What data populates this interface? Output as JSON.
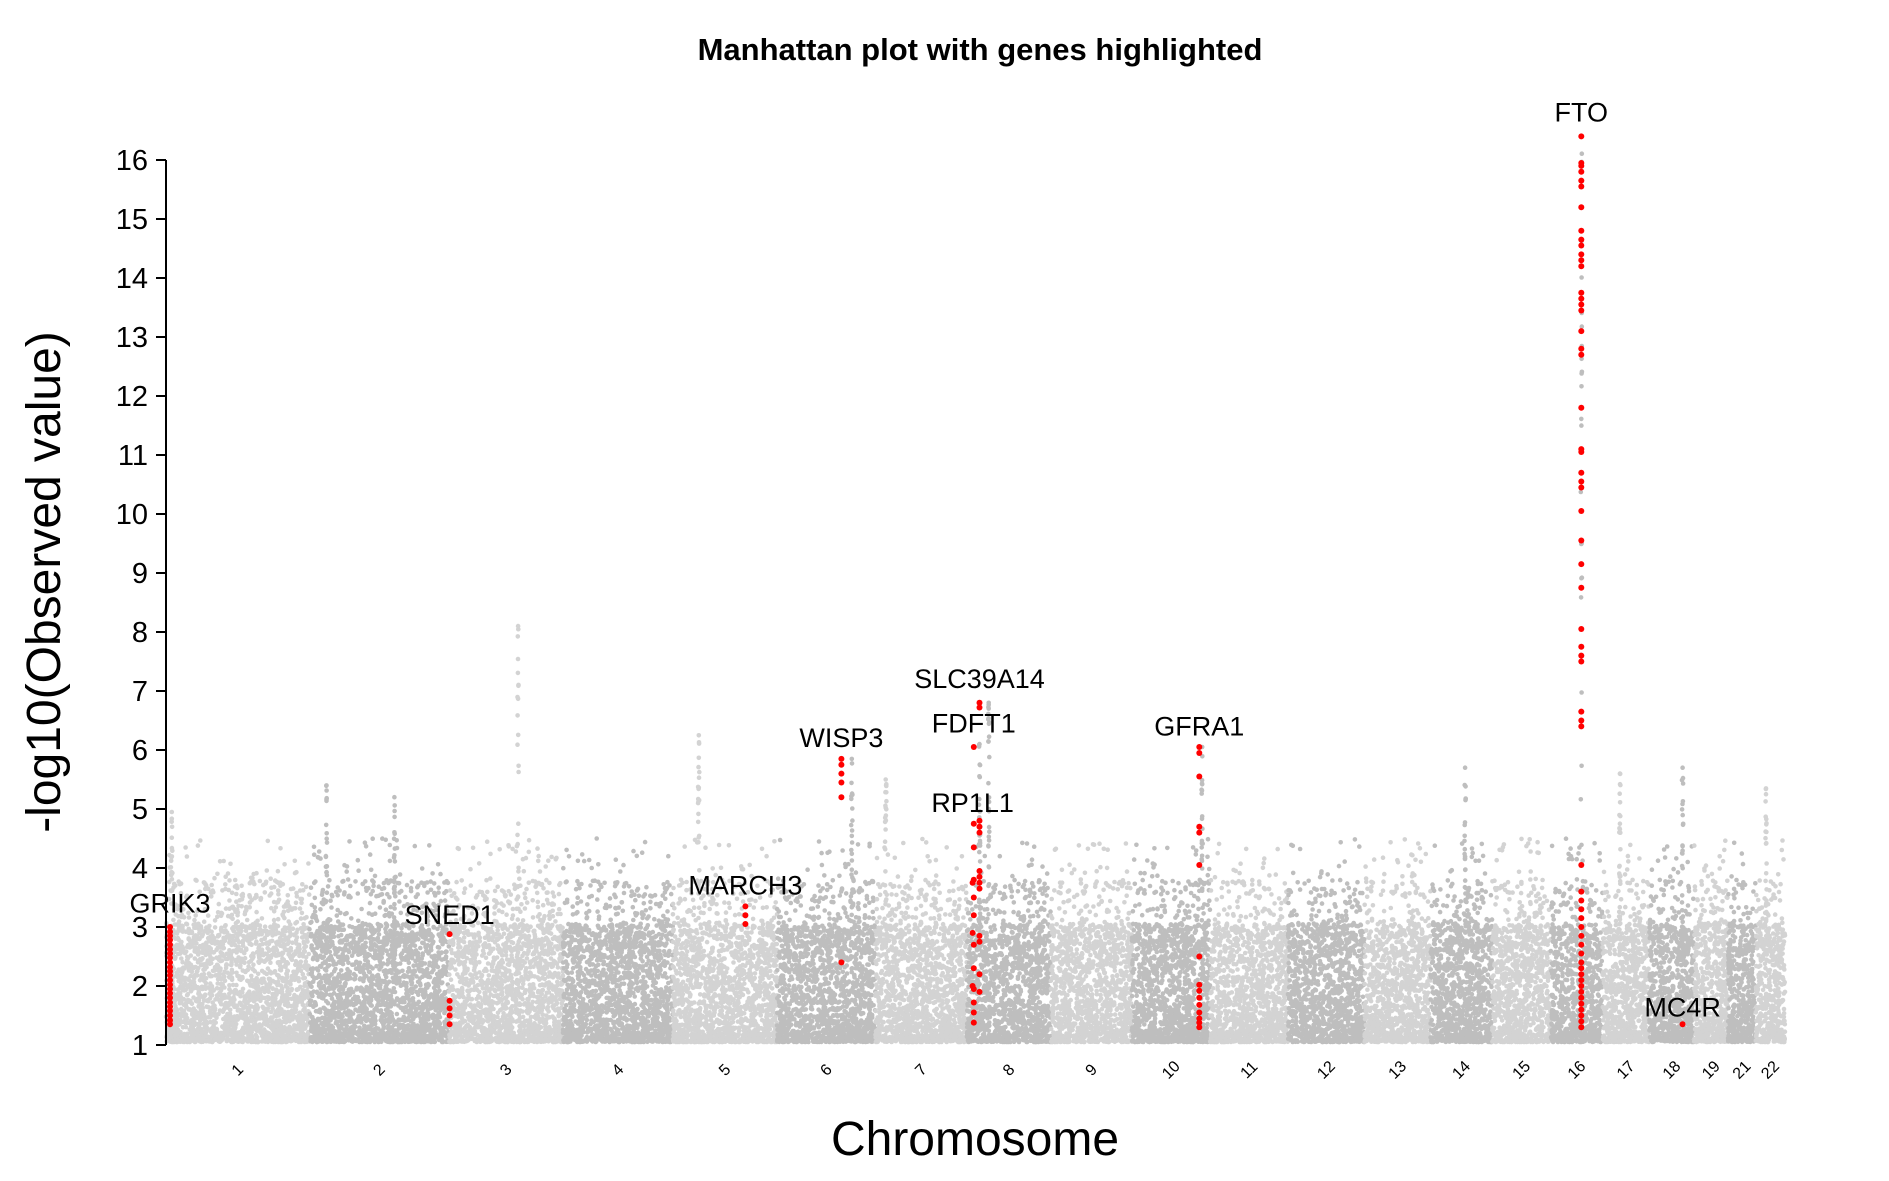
{
  "chart_data": {
    "type": "scatter",
    "title": "Manhattan plot with genes highlighted",
    "xlabel": "Chromosome",
    "ylabel": "-log10(Observed value)",
    "ylim": [
      1,
      16.5
    ],
    "y_ticks": [
      1,
      2,
      3,
      4,
      5,
      6,
      7,
      8,
      9,
      10,
      11,
      12,
      13,
      14,
      15,
      16
    ],
    "grid": false,
    "legend": "none",
    "colors": {
      "chromosome_odd": "#d3d3d3",
      "chromosome_even": "#bebebe",
      "highlight": "#ff0000",
      "axis": "#000000"
    },
    "chromosomes": [
      {
        "label": "1",
        "start": 0,
        "length": 249
      },
      {
        "label": "2",
        "start": 249,
        "length": 243
      },
      {
        "label": "3",
        "start": 492,
        "length": 198
      },
      {
        "label": "4",
        "start": 690,
        "length": 191
      },
      {
        "label": "5",
        "start": 881,
        "length": 181
      },
      {
        "label": "6",
        "start": 1062,
        "length": 171
      },
      {
        "label": "7",
        "start": 1233,
        "length": 159
      },
      {
        "label": "8",
        "start": 1392,
        "length": 146
      },
      {
        "label": "9",
        "start": 1538,
        "length": 141
      },
      {
        "label": "10",
        "start": 1679,
        "length": 136
      },
      {
        "label": "11",
        "start": 1815,
        "length": 135
      },
      {
        "label": "12",
        "start": 1950,
        "length": 133
      },
      {
        "label": "13",
        "start": 2083,
        "length": 115
      },
      {
        "label": "14",
        "start": 2198,
        "length": 107
      },
      {
        "label": "15",
        "start": 2305,
        "length": 102
      },
      {
        "label": "16",
        "start": 2407,
        "length": 90
      },
      {
        "label": "17",
        "start": 2497,
        "length": 81
      },
      {
        "label": "18",
        "start": 2578,
        "length": 78
      },
      {
        "label": "19",
        "start": 2656,
        "length": 59
      },
      {
        "label": "21",
        "start": 2715,
        "length": 48
      },
      {
        "label": "22",
        "start": 2763,
        "length": 51
      }
    ],
    "genome_length": 2814,
    "peaks": [
      {
        "chrom": "3",
        "pos": 120,
        "max": 8.1
      },
      {
        "chrom": "5",
        "pos": 45,
        "max": 6.25
      },
      {
        "chrom": "1",
        "pos": 10,
        "max": 4.95
      },
      {
        "chrom": "2",
        "pos": 30,
        "max": 5.4
      },
      {
        "chrom": "2",
        "pos": 148,
        "max": 5.2
      },
      {
        "chrom": "6",
        "pos": 130,
        "max": 5.85
      },
      {
        "chrom": "7",
        "pos": 18,
        "max": 5.5
      },
      {
        "chrom": "8",
        "pos": 22,
        "max": 6.1
      },
      {
        "chrom": "8",
        "pos": 38,
        "max": 6.8
      },
      {
        "chrom": "10",
        "pos": 122,
        "max": 6.05
      },
      {
        "chrom": "16",
        "pos": 53,
        "max": 16.4
      },
      {
        "chrom": "18",
        "pos": 58,
        "max": 5.7
      },
      {
        "chrom": "22",
        "pos": 18,
        "max": 5.35
      },
      {
        "chrom": "17",
        "pos": 30,
        "max": 5.6
      },
      {
        "chrom": "14",
        "pos": 60,
        "max": 5.7
      }
    ],
    "highlighted_genes": [
      {
        "gene": "GRIK3",
        "chrom": "1",
        "pos": 7,
        "values": [
          1.35,
          1.42,
          1.5,
          1.58,
          1.65,
          1.72,
          1.8,
          1.88,
          1.95,
          2.02,
          2.1,
          2.18,
          2.25,
          2.32,
          2.4,
          2.48,
          2.55,
          2.62,
          2.7,
          2.78,
          2.85,
          2.92,
          3.0
        ],
        "label_y": 3.25
      },
      {
        "gene": "SNED1",
        "chrom": "3",
        "pos": 1,
        "values": [
          1.35,
          1.5,
          1.62,
          1.75,
          2.88
        ],
        "label_y": 3.05
      },
      {
        "gene": "MARCH3",
        "chrom": "5",
        "pos": 126,
        "values": [
          3.05,
          3.2,
          3.35
        ],
        "label_y": 3.55
      },
      {
        "gene": "WISP3",
        "chrom": "6",
        "pos": 112,
        "values": [
          2.4,
          5.2,
          5.45,
          5.6,
          5.75,
          5.85
        ],
        "label_y": 6.05
      },
      {
        "gene": "SLC39A14",
        "chrom": "8",
        "pos": 22,
        "values": [
          6.72,
          6.8
        ],
        "label_y": 7.05
      },
      {
        "gene": "FDFT1",
        "chrom": "8",
        "pos": 12,
        "values": [
          1.38,
          1.55,
          1.72,
          1.95,
          2.3,
          2.7,
          3.2,
          3.5,
          3.8,
          4.35,
          4.75,
          6.05
        ],
        "label_y": 6.3
      },
      {
        "gene": "RP1L1",
        "chrom": "8",
        "pos": 10,
        "values": [
          2.0,
          2.9,
          3.75
        ],
        "label_y": 4.95
      },
      {
        "gene": "FDFT1-b",
        "chrom": "8",
        "pos": 22,
        "values": [
          1.9,
          2.2,
          2.75,
          2.85,
          3.65,
          3.75,
          3.85,
          3.95,
          4.6,
          4.7,
          4.8
        ],
        "label_y": null
      },
      {
        "gene": "GFRA1",
        "chrom": "10",
        "pos": 117,
        "values": [
          1.3,
          1.38,
          1.45,
          1.55,
          1.68,
          1.8,
          1.92,
          2.02,
          2.5,
          4.05,
          4.6,
          4.7,
          5.55,
          5.95,
          6.05
        ],
        "label_y": 6.25
      },
      {
        "gene": "FTO",
        "chrom": "16",
        "pos": 53,
        "values": [
          1.3,
          1.4,
          1.5,
          1.6,
          1.7,
          1.8,
          1.9,
          2.0,
          2.1,
          2.2,
          2.3,
          2.4,
          2.55,
          2.7,
          2.85,
          3.0,
          3.15,
          3.3,
          3.45,
          3.6,
          4.05,
          6.4,
          6.5,
          6.65,
          7.5,
          7.6,
          7.75,
          8.05,
          8.75,
          9.15,
          9.55,
          10.05,
          10.45,
          10.55,
          10.7,
          11.05,
          11.1,
          11.8,
          12.7,
          12.8,
          13.1,
          13.45,
          13.55,
          13.65,
          13.75,
          14.2,
          14.3,
          14.4,
          14.55,
          14.65,
          14.8,
          15.2,
          15.55,
          15.65,
          15.8,
          15.9,
          15.95,
          16.4
        ],
        "label_y": 16.65
      },
      {
        "gene": "MC4R",
        "chrom": "18",
        "pos": 58,
        "values": [
          1.35
        ],
        "label_y": 1.48
      }
    ],
    "gene_labels": [
      "GRIK3",
      "SNED1",
      "MARCH3",
      "WISP3",
      "SLC39A14",
      "FDFT1",
      "RP1L1",
      "GFRA1",
      "FTO",
      "MC4R"
    ]
  }
}
